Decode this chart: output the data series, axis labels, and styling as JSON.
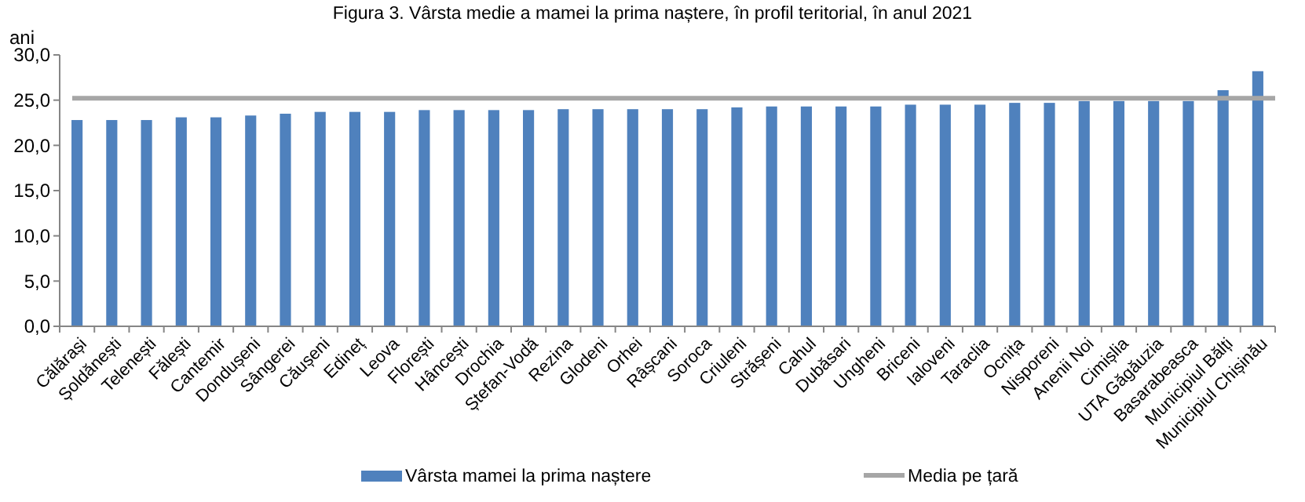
{
  "chart_data": {
    "type": "bar",
    "title": "Figura 3. Vârsta medie a mamei la prima naștere, în profil teritorial, în anul 2021",
    "ylabel": "ani",
    "categories": [
      "Călărași",
      "Șoldănești",
      "Telenești",
      "Fălești",
      "Cantemir",
      "Dondușeni",
      "Sângerei",
      "Căușeni",
      "Edineț",
      "Leova",
      "Florești",
      "Hâncești",
      "Drochia",
      "Ștefan-Vodă",
      "Rezina",
      "Glodeni",
      "Orhei",
      "Râșcani",
      "Soroca",
      "Criuleni",
      "Strășeni",
      "Cahul",
      "Dubăsari",
      "Ungheni",
      "Briceni",
      "Ialoveni",
      "Taraclia",
      "Ocnița",
      "Nisporeni",
      "Anenii Noi",
      "Cimișlia",
      "UTA Găgăuzia",
      "Basarabeasca",
      "Municipiul Bălți",
      "Municipiul Chișinău"
    ],
    "series": [
      {
        "name": "Vârsta mamei la prima naștere",
        "color": "#4f81bd",
        "values": [
          22.8,
          22.8,
          22.8,
          23.1,
          23.1,
          23.3,
          23.5,
          23.7,
          23.7,
          23.7,
          23.9,
          23.9,
          23.9,
          23.9,
          24.0,
          24.0,
          24.0,
          24.0,
          24.0,
          24.2,
          24.3,
          24.3,
          24.3,
          24.3,
          24.5,
          24.5,
          24.5,
          24.7,
          24.7,
          24.9,
          24.9,
          24.9,
          24.9,
          26.1,
          28.2
        ]
      }
    ],
    "ref_lines": [
      {
        "axis": "y",
        "value": 25.2,
        "label": "Media pe țară",
        "color": "#a6a6a6"
      }
    ],
    "ylim": [
      0,
      30
    ],
    "yticks": [
      {
        "value": 0,
        "label": "0,0"
      },
      {
        "value": 5,
        "label": "5,0"
      },
      {
        "value": 10,
        "label": "10,0"
      },
      {
        "value": 15,
        "label": "15,0"
      },
      {
        "value": 20,
        "label": "20,0"
      },
      {
        "value": 25,
        "label": "25,0"
      },
      {
        "value": 30,
        "label": "30,0"
      }
    ],
    "grid": false,
    "legend": "bottom"
  }
}
